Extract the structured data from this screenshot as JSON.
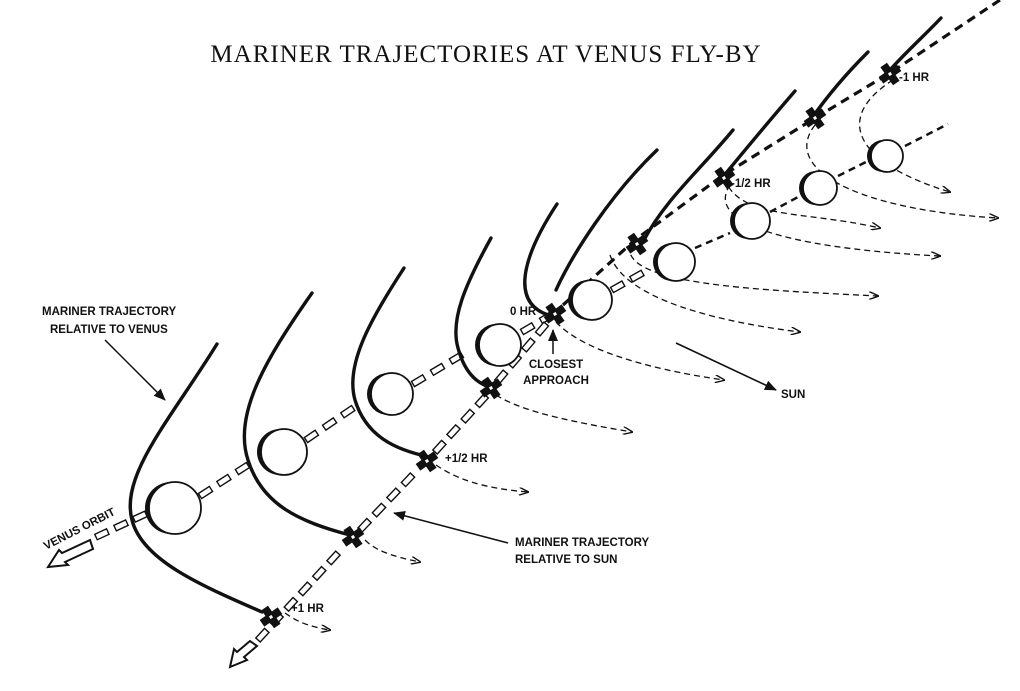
{
  "title": "MARINER TRAJECTORIES AT VENUS FLY-BY",
  "labels": {
    "mariner_rel_venus_line1": "MARINER TRAJECTORY",
    "mariner_rel_venus_line2": "RELATIVE TO VENUS",
    "mariner_rel_sun_line1": "MARINER TRAJECTORY",
    "mariner_rel_sun_line2": "RELATIVE TO SUN",
    "venus_orbit": "VENUS ORBIT",
    "sun": "SUN",
    "closest_line1": "CLOSEST",
    "closest_line2": "APPROACH"
  },
  "times": {
    "minus_1": "-1 HR",
    "minus_half": "-1/2 HR",
    "zero": "0 HR",
    "plus_half": "+1/2 HR",
    "plus_1": "+1 HR"
  }
}
